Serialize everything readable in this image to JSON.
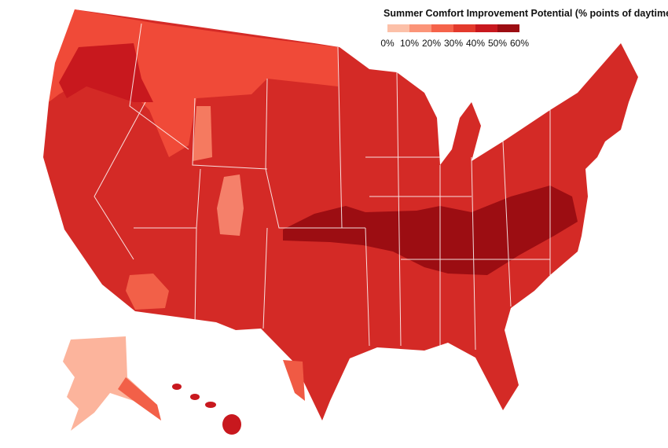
{
  "legend": {
    "title": "Summer Comfort Improvement Potential (% points of daytime hrs)",
    "labels": [
      "0%",
      "10%",
      "20%",
      "30%",
      "40%",
      "50%",
      "60%"
    ],
    "colors": [
      "#fcc0a8",
      "#fb9478",
      "#f5634a",
      "#e33a2c",
      "#c8181e",
      "#9c0d12"
    ]
  }
}
